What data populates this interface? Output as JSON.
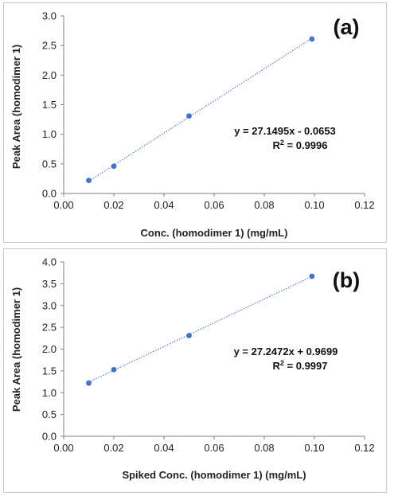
{
  "chart_data": [
    {
      "type": "scatter",
      "panel_label": "(a)",
      "xlabel": "Conc. (homodimer 1) (mg/mL)",
      "ylabel": "Peak Area (homodimer 1)",
      "xlim": [
        0,
        0.12
      ],
      "ylim": [
        0,
        3.0
      ],
      "x_ticks": [
        "0.00",
        "0.02",
        "0.04",
        "0.06",
        "0.08",
        "0.10",
        "0.12"
      ],
      "y_ticks": [
        "0.0",
        "0.5",
        "1.0",
        "1.5",
        "2.0",
        "2.5",
        "3.0"
      ],
      "grid": false,
      "trendline": "linear",
      "equation": "y = 27.1495x - 0.0653",
      "r2_prefix": "R",
      "r2_exp": "2",
      "r2_value": " = 0.9996",
      "series": [
        {
          "x": [
            0.01,
            0.02,
            0.05,
            0.099
          ],
          "y": [
            0.22,
            0.46,
            1.31,
            2.61
          ]
        }
      ],
      "fit": {
        "slope": 27.1495,
        "intercept": -0.0653
      }
    },
    {
      "type": "scatter",
      "panel_label": "(b)",
      "xlabel": "Spiked Conc. (homodimer 1) (mg/mL)",
      "ylabel": "Peak Area (homodimer 1)",
      "xlim": [
        0,
        0.12
      ],
      "ylim": [
        0,
        4.0
      ],
      "x_ticks": [
        "0.00",
        "0.02",
        "0.04",
        "0.06",
        "0.08",
        "0.10",
        "0.12"
      ],
      "y_ticks": [
        "0.0",
        "0.5",
        "1.0",
        "1.5",
        "2.0",
        "2.5",
        "3.0",
        "3.5",
        "4.0"
      ],
      "grid": false,
      "trendline": "linear",
      "equation": "y = 27.2472x + 0.9699",
      "r2_prefix": "R",
      "r2_exp": "2",
      "r2_value": " = 0.9997",
      "series": [
        {
          "x": [
            0.01,
            0.02,
            0.05,
            0.099
          ],
          "y": [
            1.22,
            1.53,
            2.31,
            3.67
          ]
        }
      ],
      "fit": {
        "slope": 27.2472,
        "intercept": 0.9699
      }
    }
  ],
  "colors": {
    "marker": "#4472c4",
    "trendline": "#4472c4",
    "axis": "#7f7f7f"
  }
}
